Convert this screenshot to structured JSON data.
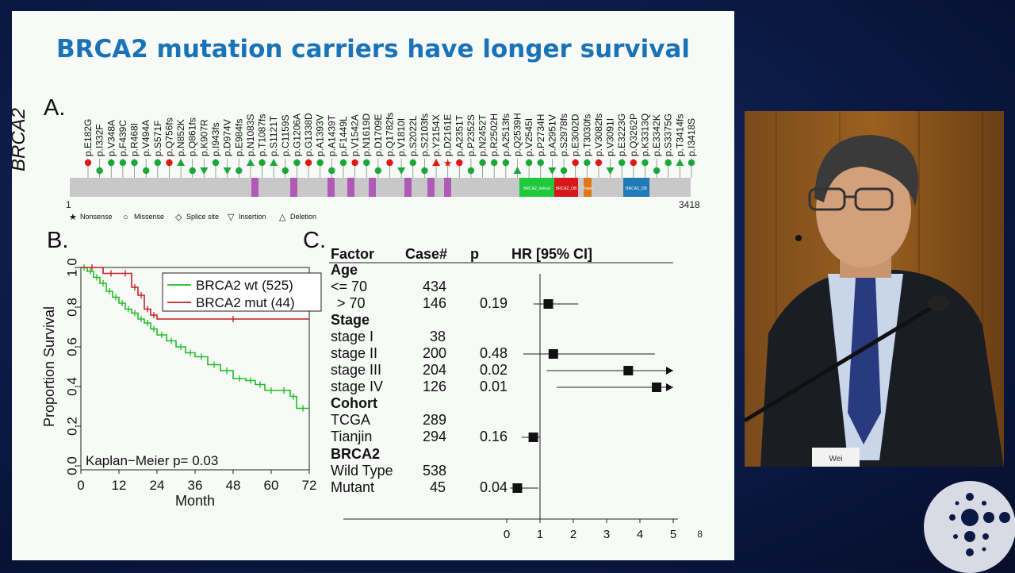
{
  "slide": {
    "title": "BRCA2 mutation carriers have longer survival",
    "page_number": "8",
    "panel_labels": {
      "a": "A.",
      "b": "B.",
      "c": "C."
    }
  },
  "gene_plot": {
    "gene": "BRCA2",
    "start": "1",
    "end": "3418",
    "legend": [
      {
        "symbol": "★",
        "label": "Nonsense"
      },
      {
        "symbol": "○",
        "label": "Missense"
      },
      {
        "symbol": "◇",
        "label": "Splice site"
      },
      {
        "symbol": "▽",
        "label": "Insertion"
      },
      {
        "symbol": "△",
        "label": "Deletion"
      }
    ],
    "domain_labels": [
      "BRCA2_helical",
      "BRCA2_OB",
      "Tower",
      "BRCA2_OB"
    ],
    "mutations": [
      {
        "label": "p.E182G",
        "marker": "red-circle"
      },
      {
        "label": "p.I332F",
        "marker": "green-circle"
      },
      {
        "label": "p.V348A",
        "marker": "green-circle"
      },
      {
        "label": "p.F439C",
        "marker": "green-circle"
      },
      {
        "label": "p.R468I",
        "marker": "green-circle"
      },
      {
        "label": "p.V494A",
        "marker": "green-circle"
      },
      {
        "label": "p.S571F",
        "marker": "green-circle"
      },
      {
        "label": "p.Q756fs",
        "marker": "red-circle"
      },
      {
        "label": "p.N852K",
        "marker": "green-triangle-up"
      },
      {
        "label": "p.Q861fs",
        "marker": "green-circle"
      },
      {
        "label": "p.K907R",
        "marker": "green-triangle-down"
      },
      {
        "label": "p.I943fs",
        "marker": "green-circle"
      },
      {
        "label": "p.D974V",
        "marker": "green-triangle-down"
      },
      {
        "label": "p.E984fs",
        "marker": "green-circle"
      },
      {
        "label": "p.N1083S",
        "marker": "green-triangle-up"
      },
      {
        "label": "p.T1087fs",
        "marker": "green-circle"
      },
      {
        "label": "p.S1121T",
        "marker": "green-triangle-up"
      },
      {
        "label": "p.C1159S",
        "marker": "green-circle"
      },
      {
        "label": "p.G1206A",
        "marker": "green-circle"
      },
      {
        "label": "p.G1338D",
        "marker": "red-circle"
      },
      {
        "label": "p.A1393V",
        "marker": "green-circle"
      },
      {
        "label": "p.A1439T",
        "marker": "green-circle"
      },
      {
        "label": "p.F1449L",
        "marker": "green-circle"
      },
      {
        "label": "p.V1542A",
        "marker": "red-circle"
      },
      {
        "label": "p.N1619D",
        "marker": "green-circle"
      },
      {
        "label": "p.D1709E",
        "marker": "green-circle"
      },
      {
        "label": "p.Q1782fs",
        "marker": "red-circle"
      },
      {
        "label": "p.V1810I",
        "marker": "green-triangle-down"
      },
      {
        "label": "p.S2022L",
        "marker": "green-circle"
      },
      {
        "label": "p.S2103fs",
        "marker": "green-circle"
      },
      {
        "label": "p.Y2154X",
        "marker": "red-triangle-up"
      },
      {
        "label": "p.D2161E",
        "marker": "red-star"
      },
      {
        "label": "p.A2351T",
        "marker": "red-circle"
      },
      {
        "label": "p.P2352S",
        "marker": "green-circle"
      },
      {
        "label": "p.N2452T",
        "marker": "green-circle"
      },
      {
        "label": "p.R2502H",
        "marker": "green-circle"
      },
      {
        "label": "p.A2513fs",
        "marker": "green-circle"
      },
      {
        "label": "p.Q2539H",
        "marker": "green-triangle-up"
      },
      {
        "label": "p.V2545I",
        "marker": "green-circle"
      },
      {
        "label": "p.P2734H",
        "marker": "green-circle"
      },
      {
        "label": "p.A2951V",
        "marker": "green-triangle-down"
      },
      {
        "label": "p.S2978fs",
        "marker": "green-circle"
      },
      {
        "label": "p.E3002D",
        "marker": "red-circle"
      },
      {
        "label": "p.T3030fs",
        "marker": "green-circle"
      },
      {
        "label": "p.V3082fs",
        "marker": "red-circle"
      },
      {
        "label": "p.V3091I",
        "marker": "green-triangle-down"
      },
      {
        "label": "p.E3223G",
        "marker": "green-circle"
      },
      {
        "label": "p.Q3262P",
        "marker": "red-circle"
      },
      {
        "label": "p.K3313Q",
        "marker": "green-circle"
      },
      {
        "label": "p.E3342K",
        "marker": "green-circle"
      },
      {
        "label": "p.S3375G",
        "marker": "green-circle"
      },
      {
        "label": "p.T3414fs",
        "marker": "green-triangle-up"
      },
      {
        "label": "p.I3418S",
        "marker": "green-circle"
      }
    ]
  },
  "chart_data": [
    {
      "type": "line",
      "subtype": "kaplan-meier",
      "xlabel": "Month",
      "ylabel": "Proportion Survival",
      "xlim": [
        0,
        72
      ],
      "ylim": [
        0,
        1.0
      ],
      "xticks": [
        0,
        12,
        24,
        36,
        48,
        60,
        72
      ],
      "yticks": [
        "0.0",
        "0.2",
        "0.4",
        "0.6",
        "0.8",
        "1.0"
      ],
      "annotation": "Kaplan−Meier p= 0.03",
      "legend_position": "top-right",
      "series": [
        {
          "name": "BRCA2 wt (525)",
          "color": "#22bb22",
          "x": [
            0,
            2,
            4,
            6,
            8,
            10,
            12,
            14,
            16,
            18,
            20,
            22,
            24,
            27,
            30,
            33,
            36,
            40,
            44,
            48,
            52,
            55,
            58,
            62,
            66,
            68,
            72
          ],
          "y": [
            1.0,
            0.98,
            0.95,
            0.92,
            0.88,
            0.85,
            0.82,
            0.79,
            0.77,
            0.74,
            0.72,
            0.69,
            0.66,
            0.63,
            0.6,
            0.57,
            0.55,
            0.51,
            0.48,
            0.44,
            0.43,
            0.41,
            0.38,
            0.38,
            0.35,
            0.29,
            0.29
          ]
        },
        {
          "name": "BRCA2 mut (44)",
          "color": "#c42020",
          "x": [
            0,
            7,
            12,
            16,
            18,
            20,
            22,
            24,
            72
          ],
          "y": [
            1.0,
            0.97,
            0.97,
            0.9,
            0.86,
            0.79,
            0.76,
            0.74,
            0.74
          ]
        }
      ]
    },
    {
      "type": "forest",
      "columns": [
        "Factor",
        "Case#",
        "p",
        "HR [95% CI]"
      ],
      "xticks": [
        0,
        1,
        2,
        3,
        4,
        5
      ],
      "xlim": [
        0,
        5
      ],
      "reference_line": 1,
      "rows": [
        {
          "factor": "Age",
          "header": true
        },
        {
          "factor": "<= 70",
          "cases": "434",
          "p": ""
        },
        {
          "factor": "> 70",
          "cases": "146",
          "p": "0.19",
          "hr": 1.25,
          "ci": [
            0.8,
            2.15
          ]
        },
        {
          "factor": "Stage",
          "header": true
        },
        {
          "factor": "stage I",
          "cases": "38",
          "p": ""
        },
        {
          "factor": "stage II",
          "cases": "200",
          "p": "0.48",
          "hr": 1.4,
          "ci": [
            0.5,
            4.45
          ]
        },
        {
          "factor": "stage III",
          "cases": "204",
          "p": "0.02",
          "hr": 3.65,
          "ci": [
            1.2,
            5.0
          ],
          "arrow": true
        },
        {
          "factor": "stage IV",
          "cases": "126",
          "p": "0.01",
          "hr": 4.5,
          "ci": [
            1.5,
            5.0
          ],
          "arrow": true
        },
        {
          "factor": "Cohort",
          "header": true
        },
        {
          "factor": "TCGA",
          "cases": "289",
          "p": ""
        },
        {
          "factor": "Tianjin",
          "cases": "294",
          "p": "0.16",
          "hr": 0.8,
          "ci": [
            0.45,
            1.0
          ]
        },
        {
          "factor": "BRCA2",
          "header": true
        },
        {
          "factor": "Wild Type",
          "cases": "538",
          "p": ""
        },
        {
          "factor": "Mutant",
          "cases": "45",
          "p": "0.04",
          "hr": 0.32,
          "ci": [
            0.1,
            0.95
          ]
        }
      ]
    }
  ],
  "speaker": {
    "name_tag": "Wei"
  }
}
